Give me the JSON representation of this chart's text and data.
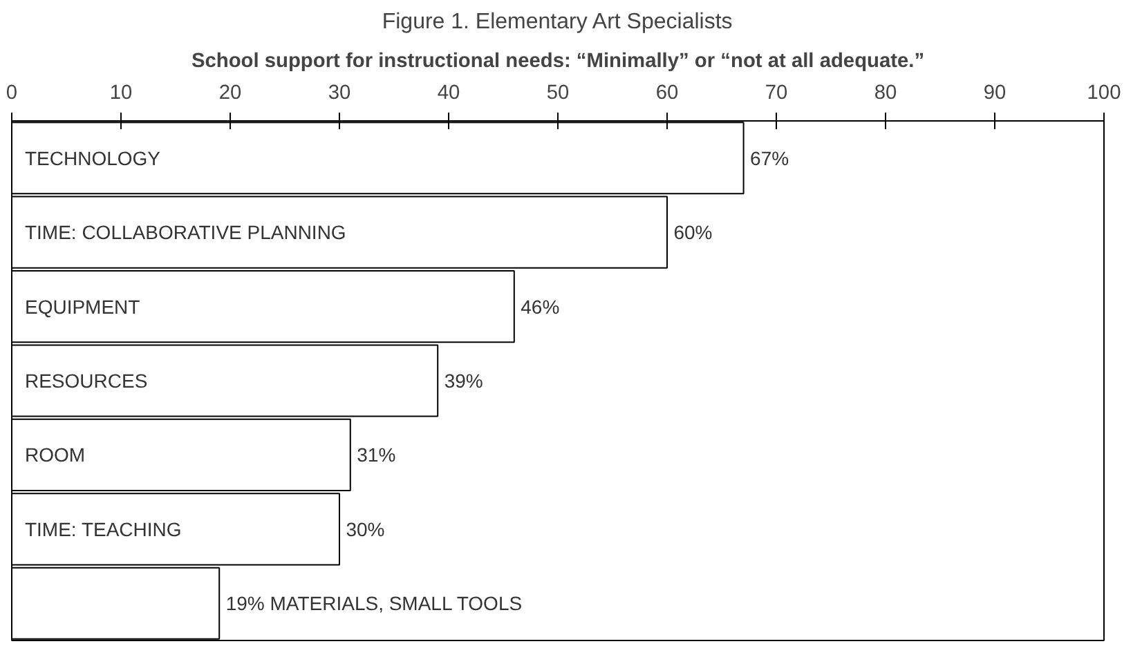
{
  "chart_data": {
    "type": "bar",
    "orientation": "horizontal",
    "title": "Figure 1. Elementary Art Specialists",
    "subtitle": "School support for instructional needs: “Minimally” or “not at all adequate.”",
    "categories": [
      "TECHNOLOGY",
      "TIME: COLLABORATIVE PLANNING",
      "EQUIPMENT",
      "RESOURCES",
      "ROOM",
      "TIME: TEACHING",
      "MATERIALS, SMALL TOOLS"
    ],
    "values": [
      67,
      60,
      46,
      39,
      31,
      30,
      19
    ],
    "value_labels": [
      "67%",
      "60%",
      "46%",
      "39%",
      "31%",
      "30%",
      "19%"
    ],
    "color": "#ffffff",
    "xlim": [
      0,
      100
    ],
    "xticks": [
      0,
      10,
      20,
      30,
      40,
      50,
      60,
      70,
      80,
      90,
      100
    ],
    "grid": false
  }
}
